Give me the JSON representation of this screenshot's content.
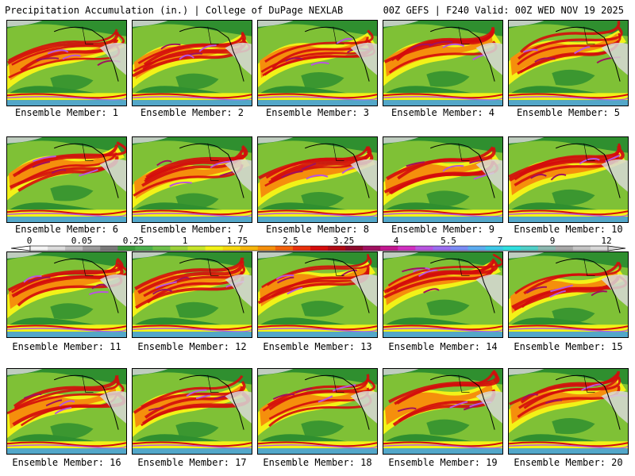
{
  "header": {
    "title": "Precipitation Accumulation (in.) | College of DuPage NEXLAB",
    "valid": "00Z GEFS | F240 Valid: 00Z WED NOV 19 2025"
  },
  "colorbar": {
    "labels": [
      "0",
      "0.05",
      "0.25",
      "1",
      "1.75",
      "2.5",
      "3.25",
      "4",
      "5.5",
      "7",
      "9",
      "12"
    ],
    "colors": [
      "#f4f4f4",
      "#dcdcdc",
      "#bdbdbd",
      "#9b9b9b",
      "#7a7a7a",
      "#3a9a3a",
      "#4db04d",
      "#6ec04a",
      "#9bd13a",
      "#c6e52a",
      "#f2f218",
      "#f5d80f",
      "#f6b50c",
      "#f58f0c",
      "#f2620c",
      "#e8300c",
      "#d40c0c",
      "#b00a14",
      "#8c0a2c",
      "#a01060",
      "#c21890",
      "#d030c0",
      "#b855e0",
      "#9a6ef0",
      "#7a8cf5",
      "#5cacf0",
      "#3ec8e8",
      "#30e0e0",
      "#50d0c8",
      "#8cb8b0",
      "#a8a8a8",
      "#c4c4c4",
      "#d8d8d8"
    ]
  },
  "members": [
    {
      "label": "Ensemble Member: 1"
    },
    {
      "label": "Ensemble Member: 2"
    },
    {
      "label": "Ensemble Member: 3"
    },
    {
      "label": "Ensemble Member: 4"
    },
    {
      "label": "Ensemble Member: 5"
    },
    {
      "label": "Ensemble Member: 6"
    },
    {
      "label": "Ensemble Member: 7"
    },
    {
      "label": "Ensemble Member: 8"
    },
    {
      "label": "Ensemble Member: 9"
    },
    {
      "label": "Ensemble Member: 10"
    },
    {
      "label": "Ensemble Member: 11"
    },
    {
      "label": "Ensemble Member: 12"
    },
    {
      "label": "Ensemble Member: 13"
    },
    {
      "label": "Ensemble Member: 14"
    },
    {
      "label": "Ensemble Member: 15"
    },
    {
      "label": "Ensemble Member: 16"
    },
    {
      "label": "Ensemble Member: 17"
    },
    {
      "label": "Ensemble Member: 18"
    },
    {
      "label": "Ensemble Member: 19"
    },
    {
      "label": "Ensemble Member: 20"
    }
  ],
  "colors": {
    "ocean_base": "#2f8f2f",
    "land": "#3a8a3a",
    "light": "#9bd13a",
    "yellow": "#f2f218",
    "orange": "#f58f0c",
    "red": "#d40c0c",
    "maroon": "#a01060",
    "purple": "#b855e0",
    "cyan": "#5cacf0",
    "snow": "#d8d8d8",
    "coast": "#000000"
  }
}
